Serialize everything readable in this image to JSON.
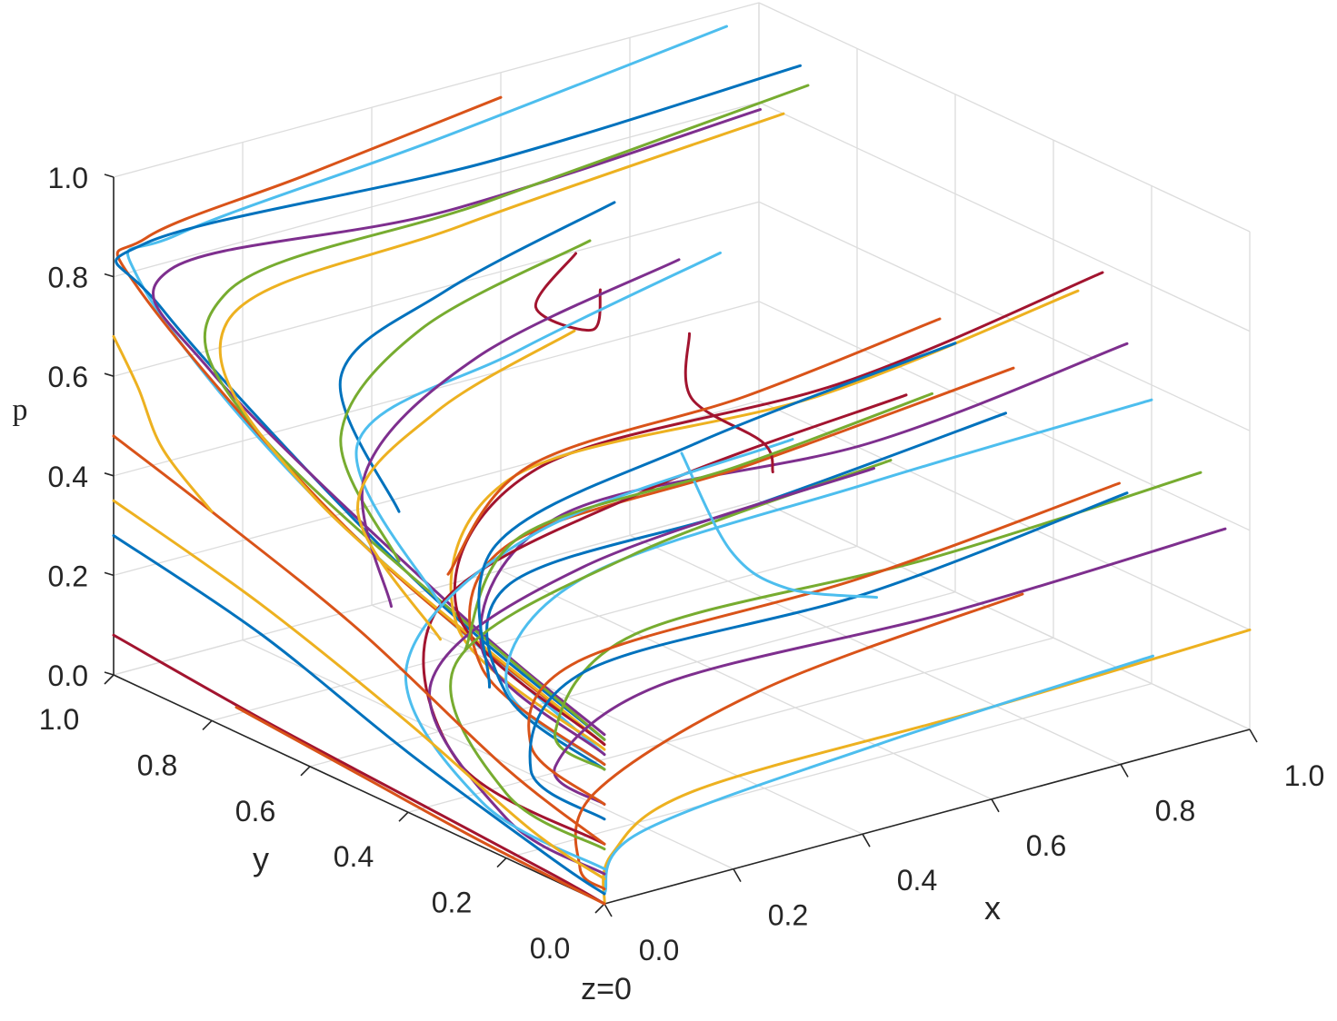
{
  "chart_data": {
    "type": "line",
    "subtype": "3d-phase-trajectories",
    "title": "",
    "xlabel": "x",
    "ylabel": "y",
    "zlabel": "p",
    "caption": "z=0",
    "xlim": [
      0,
      1
    ],
    "ylim": [
      0,
      1
    ],
    "zlim": [
      0,
      1
    ],
    "x_ticks": [
      "0.0",
      "0.2",
      "0.4",
      "0.6",
      "0.8",
      "1.0"
    ],
    "y_ticks": [
      "0.0",
      "0.2",
      "0.4",
      "0.6",
      "0.8",
      "1.0"
    ],
    "z_ticks": [
      "0.0",
      "0.2",
      "0.4",
      "0.6",
      "0.8",
      "1.0"
    ],
    "grid": true,
    "legend": "none",
    "colors": [
      "#0072BD",
      "#D95319",
      "#EDB120",
      "#7E2F8E",
      "#77AC30",
      "#4DBEEE",
      "#A2142F"
    ],
    "series": [
      {
        "color": "#4DBEEE",
        "points": [
          [
            0.95,
            1.0,
            0.97
          ],
          [
            0.5,
            1.0,
            0.9
          ],
          [
            0.1,
            1.0,
            0.85
          ],
          [
            0.0,
            0.95,
            0.82
          ],
          [
            0.0,
            0.6,
            0.55
          ],
          [
            0.0,
            0.0,
            0.3
          ]
        ]
      },
      {
        "color": "#D95319",
        "points": [
          [
            0.6,
            1.0,
            0.95
          ],
          [
            0.3,
            1.0,
            0.9
          ],
          [
            0.05,
            1.0,
            0.86
          ],
          [
            0.0,
            0.95,
            0.8
          ],
          [
            0.0,
            0.5,
            0.5
          ],
          [
            0.0,
            0.0,
            0.32
          ]
        ]
      },
      {
        "color": "#0072BD",
        "points": [
          [
            0.95,
            0.85,
            0.96
          ],
          [
            0.5,
            0.9,
            0.9
          ],
          [
            0.05,
            1.0,
            0.85
          ],
          [
            0.0,
            0.9,
            0.78
          ],
          [
            0.0,
            0.4,
            0.48
          ],
          [
            0.0,
            0.0,
            0.33
          ]
        ]
      },
      {
        "color": "#7E2F8E",
        "points": [
          [
            0.85,
            0.8,
            0.93
          ],
          [
            0.4,
            0.85,
            0.86
          ],
          [
            0.05,
            0.95,
            0.82
          ],
          [
            0.0,
            0.8,
            0.7
          ],
          [
            0.0,
            0.3,
            0.45
          ],
          [
            0.0,
            0.0,
            0.34
          ]
        ]
      },
      {
        "color": "#77AC30",
        "points": [
          [
            1.0,
            0.9,
            0.88
          ],
          [
            0.5,
            0.9,
            0.82
          ],
          [
            0.1,
            0.9,
            0.78
          ],
          [
            0.0,
            0.7,
            0.62
          ],
          [
            0.0,
            0.0,
            0.33
          ]
        ]
      },
      {
        "color": "#EDB120",
        "points": [
          [
            1.0,
            0.95,
            0.8
          ],
          [
            0.5,
            0.95,
            0.75
          ],
          [
            0.1,
            0.9,
            0.72
          ],
          [
            0.0,
            0.6,
            0.55
          ],
          [
            0.0,
            0.0,
            0.32
          ]
        ]
      },
      {
        "color": "#A2142F",
        "points": [
          [
            1.0,
            0.3,
            0.78
          ],
          [
            0.6,
            0.3,
            0.7
          ],
          [
            0.2,
            0.4,
            0.62
          ],
          [
            0.0,
            0.3,
            0.45
          ],
          [
            0.0,
            0.0,
            0.32
          ]
        ]
      },
      {
        "color": "#EDB120",
        "points": [
          [
            1.0,
            0.35,
            0.72
          ],
          [
            0.6,
            0.35,
            0.65
          ],
          [
            0.2,
            0.45,
            0.58
          ],
          [
            0.0,
            0.3,
            0.42
          ],
          [
            0.0,
            0.0,
            0.31
          ]
        ]
      },
      {
        "color": "#7E2F8E",
        "points": [
          [
            1.0,
            0.25,
            0.66
          ],
          [
            0.6,
            0.25,
            0.6
          ],
          [
            0.2,
            0.35,
            0.55
          ],
          [
            0.0,
            0.25,
            0.4
          ],
          [
            0.0,
            0.0,
            0.3
          ]
        ]
      },
      {
        "color": "#4DBEEE",
        "points": [
          [
            1.0,
            0.2,
            0.57
          ],
          [
            0.6,
            0.25,
            0.52
          ],
          [
            0.2,
            0.3,
            0.45
          ],
          [
            0.0,
            0.2,
            0.35
          ],
          [
            0.0,
            0.0,
            0.28
          ]
        ]
      },
      {
        "color": "#D95319",
        "points": [
          [
            0.9,
            0.35,
            0.6
          ],
          [
            0.5,
            0.35,
            0.55
          ],
          [
            0.15,
            0.4,
            0.48
          ],
          [
            0.0,
            0.25,
            0.36
          ],
          [
            0.0,
            0.0,
            0.28
          ]
        ]
      },
      {
        "color": "#0072BD",
        "points": [
          [
            0.85,
            0.3,
            0.55
          ],
          [
            0.45,
            0.3,
            0.5
          ],
          [
            0.12,
            0.35,
            0.44
          ],
          [
            0.0,
            0.2,
            0.33
          ],
          [
            0.0,
            0.0,
            0.27
          ]
        ]
      },
      {
        "color": "#77AC30",
        "points": [
          [
            1.0,
            0.1,
            0.47
          ],
          [
            0.6,
            0.12,
            0.43
          ],
          [
            0.2,
            0.2,
            0.38
          ],
          [
            0.0,
            0.1,
            0.3
          ],
          [
            0.0,
            0.0,
            0.27
          ]
        ]
      },
      {
        "color": "#7E2F8E",
        "points": [
          [
            1.0,
            0.05,
            0.38
          ],
          [
            0.6,
            0.08,
            0.34
          ],
          [
            0.2,
            0.15,
            0.3
          ],
          [
            0.0,
            0.1,
            0.23
          ],
          [
            0.0,
            0.0,
            0.2
          ]
        ]
      },
      {
        "color": "#D95319",
        "points": [
          [
            0.95,
            0.2,
            0.42
          ],
          [
            0.55,
            0.2,
            0.37
          ],
          [
            0.15,
            0.25,
            0.32
          ],
          [
            0.0,
            0.15,
            0.25
          ],
          [
            0.0,
            0.0,
            0.2
          ]
        ]
      },
      {
        "color": "#0072BD",
        "points": [
          [
            1.0,
            0.25,
            0.36
          ],
          [
            0.6,
            0.25,
            0.3
          ],
          [
            0.2,
            0.3,
            0.26
          ],
          [
            0.0,
            0.15,
            0.2
          ],
          [
            0.0,
            0.0,
            0.17
          ]
        ]
      },
      {
        "color": "#EDB120",
        "points": [
          [
            1.0,
            0.0,
            0.2
          ],
          [
            0.6,
            0.02,
            0.17
          ],
          [
            0.2,
            0.08,
            0.12
          ],
          [
            0.05,
            0.05,
            0.06
          ],
          [
            0.0,
            0.0,
            0.0
          ]
        ]
      },
      {
        "color": "#4DBEEE",
        "points": [
          [
            0.85,
            0.0,
            0.2
          ],
          [
            0.45,
            0.03,
            0.15
          ],
          [
            0.1,
            0.06,
            0.08
          ],
          [
            0.0,
            0.0,
            0.02
          ]
        ]
      },
      {
        "color": "#D95319",
        "points": [
          [
            0.8,
            0.2,
            0.25
          ],
          [
            0.4,
            0.2,
            0.2
          ],
          [
            0.1,
            0.15,
            0.12
          ],
          [
            0.0,
            0.05,
            0.05
          ],
          [
            0.0,
            0.0,
            0.03
          ]
        ]
      },
      {
        "color": "#A2142F",
        "points": [
          [
            1.0,
            0.7,
            0.35
          ],
          [
            0.6,
            0.7,
            0.3
          ],
          [
            0.2,
            0.6,
            0.25
          ],
          [
            0.0,
            0.3,
            0.15
          ],
          [
            0.0,
            0.0,
            0.12
          ]
        ]
      },
      {
        "color": "#77AC30",
        "points": [
          [
            0.9,
            0.6,
            0.3
          ],
          [
            0.5,
            0.6,
            0.25
          ],
          [
            0.15,
            0.5,
            0.2
          ],
          [
            0.0,
            0.2,
            0.13
          ],
          [
            0.0,
            0.0,
            0.11
          ]
        ]
      },
      {
        "color": "#7E2F8E",
        "points": [
          [
            0.95,
            0.7,
            0.22
          ],
          [
            0.5,
            0.7,
            0.18
          ],
          [
            0.15,
            0.55,
            0.14
          ],
          [
            0.0,
            0.2,
            0.08
          ],
          [
            0.0,
            0.0,
            0.06
          ]
        ]
      },
      {
        "color": "#4DBEEE",
        "points": [
          [
            0.9,
            0.8,
            0.25
          ],
          [
            0.5,
            0.8,
            0.2
          ],
          [
            0.15,
            0.6,
            0.15
          ],
          [
            0.0,
            0.25,
            0.09
          ],
          [
            0.0,
            0.0,
            0.07
          ]
        ]
      },
      {
        "color": "#A2142F",
        "points": [
          [
            0.0,
            1.0,
            0.08
          ],
          [
            0.0,
            0.7,
            0.05
          ],
          [
            0.0,
            0.4,
            0.03
          ],
          [
            0.0,
            0.1,
            0.01
          ],
          [
            0.0,
            0.0,
            0.0
          ]
        ]
      },
      {
        "color": "#D95319",
        "points": [
          [
            0.0,
            0.75,
            0.05
          ],
          [
            0.0,
            0.5,
            0.03
          ],
          [
            0.0,
            0.25,
            0.01
          ],
          [
            0.0,
            0.0,
            0.0
          ]
        ]
      },
      {
        "color": "#0072BD",
        "points": [
          [
            0.0,
            1.0,
            0.28
          ],
          [
            0.0,
            0.7,
            0.22
          ],
          [
            0.0,
            0.4,
            0.12
          ],
          [
            0.0,
            0.1,
            0.04
          ],
          [
            0.0,
            0.0,
            0.02
          ]
        ]
      },
      {
        "color": "#EDB120",
        "points": [
          [
            0.0,
            1.0,
            0.35
          ],
          [
            0.0,
            0.7,
            0.28
          ],
          [
            0.0,
            0.4,
            0.18
          ],
          [
            0.0,
            0.15,
            0.08
          ],
          [
            0.0,
            0.0,
            0.05
          ]
        ]
      },
      {
        "color": "#D95319",
        "points": [
          [
            0.0,
            1.0,
            0.48
          ],
          [
            0.0,
            0.8,
            0.42
          ],
          [
            0.0,
            0.5,
            0.32
          ],
          [
            0.0,
            0.2,
            0.18
          ],
          [
            0.0,
            0.0,
            0.12
          ]
        ]
      },
      {
        "color": "#EDB120",
        "points": [
          [
            0.0,
            1.0,
            0.68
          ],
          [
            0.0,
            0.95,
            0.6
          ],
          [
            0.0,
            0.9,
            0.5
          ],
          [
            0.0,
            0.8,
            0.42
          ]
        ]
      },
      {
        "color": "#A2142F",
        "points": [
          [
            0.45,
            0.65,
            0.85
          ],
          [
            0.35,
            0.6,
            0.8
          ],
          [
            0.4,
            0.55,
            0.76
          ],
          [
            0.45,
            0.6,
            0.8
          ]
        ]
      },
      {
        "color": "#0072BD",
        "points": [
          [
            0.7,
            0.9,
            0.75
          ],
          [
            0.4,
            0.85,
            0.7
          ],
          [
            0.2,
            0.8,
            0.62
          ],
          [
            0.1,
            0.55,
            0.5
          ]
        ]
      },
      {
        "color": "#77AC30",
        "points": [
          [
            0.7,
            0.95,
            0.65
          ],
          [
            0.4,
            0.9,
            0.6
          ],
          [
            0.2,
            0.8,
            0.5
          ],
          [
            0.1,
            0.55,
            0.4
          ]
        ]
      },
      {
        "color": "#4DBEEE",
        "points": [
          [
            0.75,
            0.75,
            0.7
          ],
          [
            0.4,
            0.7,
            0.65
          ],
          [
            0.15,
            0.7,
            0.55
          ],
          [
            0.05,
            0.4,
            0.4
          ]
        ]
      },
      {
        "color": "#7E2F8E",
        "points": [
          [
            0.8,
            0.9,
            0.6
          ],
          [
            0.45,
            0.85,
            0.55
          ],
          [
            0.2,
            0.75,
            0.45
          ],
          [
            0.05,
            0.5,
            0.35
          ]
        ]
      },
      {
        "color": "#EDB120",
        "points": [
          [
            0.6,
            0.85,
            0.55
          ],
          [
            0.35,
            0.8,
            0.5
          ],
          [
            0.15,
            0.7,
            0.42
          ],
          [
            0.05,
            0.4,
            0.33
          ]
        ]
      },
      {
        "color": "#A2142F",
        "points": [
          [
            0.55,
            0.55,
            0.7
          ],
          [
            0.5,
            0.48,
            0.62
          ],
          [
            0.55,
            0.4,
            0.55
          ],
          [
            0.55,
            0.38,
            0.5
          ]
        ]
      },
      {
        "color": "#4DBEEE",
        "points": [
          [
            0.5,
            0.5,
            0.5
          ],
          [
            0.5,
            0.4,
            0.35
          ],
          [
            0.55,
            0.35,
            0.28
          ],
          [
            0.65,
            0.3,
            0.25
          ]
        ]
      },
      {
        "color": "#D95319",
        "points": [
          [
            0.9,
            0.5,
            0.63
          ],
          [
            0.6,
            0.5,
            0.58
          ],
          [
            0.3,
            0.55,
            0.52
          ],
          [
            0.1,
            0.45,
            0.42
          ]
        ]
      },
      {
        "color": "#77AC30",
        "points": [
          [
            0.85,
            0.45,
            0.52
          ],
          [
            0.55,
            0.45,
            0.48
          ],
          [
            0.25,
            0.5,
            0.42
          ],
          [
            0.05,
            0.35,
            0.33
          ]
        ]
      },
      {
        "color": "#0072BD",
        "points": [
          [
            1.0,
            0.6,
            0.5
          ],
          [
            0.6,
            0.6,
            0.44
          ],
          [
            0.25,
            0.55,
            0.38
          ],
          [
            0.05,
            0.3,
            0.28
          ]
        ]
      }
    ]
  }
}
